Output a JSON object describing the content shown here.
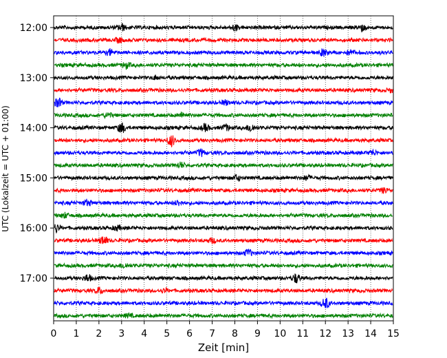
{
  "chart_data": {
    "type": "line",
    "xlabel": "Zeit  [min]",
    "ylabel": "UTC (Lokalzeit = UTC + 01:00)",
    "xlim": [
      0,
      15
    ],
    "x_ticks": [
      "0",
      "1",
      "2",
      "3",
      "4",
      "5",
      "6",
      "7",
      "8",
      "9",
      "10",
      "11",
      "12",
      "13",
      "14",
      "15"
    ],
    "y_ticks": [
      "12:00",
      "13:00",
      "14:00",
      "15:00",
      "16:00",
      "17:00"
    ],
    "grid": "vertical dotted",
    "trace_interval_minutes": 15,
    "trace_colors": [
      "#000000",
      "#ff0000",
      "#0000ff",
      "#008000"
    ],
    "series": [
      {
        "start": "12:00",
        "color": "#000000",
        "events": [
          {
            "t": 3.0,
            "a": 0.6
          },
          {
            "t": 8.0,
            "a": 0.5
          },
          {
            "t": 13.6,
            "a": 0.6
          }
        ]
      },
      {
        "start": "12:15",
        "color": "#ff0000",
        "events": [
          {
            "t": 2.9,
            "a": 0.4
          }
        ]
      },
      {
        "start": "12:30",
        "color": "#0000ff",
        "events": [
          {
            "t": 2.5,
            "a": 0.5
          },
          {
            "t": 11.9,
            "a": 0.6
          },
          {
            "t": 13.1,
            "a": 0.4
          }
        ]
      },
      {
        "start": "12:45",
        "color": "#008000",
        "events": [
          {
            "t": 3.2,
            "a": 0.5
          }
        ]
      },
      {
        "start": "13:00",
        "color": "#000000",
        "events": [
          {
            "t": 4.5,
            "a": 0.3
          }
        ]
      },
      {
        "start": "13:15",
        "color": "#ff0000",
        "events": [
          {
            "t": 14.9,
            "a": 0.3
          }
        ]
      },
      {
        "start": "13:30",
        "color": "#0000ff",
        "events": [
          {
            "t": 0.2,
            "a": 0.8
          },
          {
            "t": 7.6,
            "a": 0.4
          }
        ]
      },
      {
        "start": "13:45",
        "color": "#008000",
        "events": [
          {
            "t": 2.4,
            "a": 0.4
          },
          {
            "t": 5.7,
            "a": 0.4
          }
        ]
      },
      {
        "start": "14:00",
        "color": "#000000",
        "events": [
          {
            "t": 3.0,
            "a": 0.9
          },
          {
            "t": 6.7,
            "a": 0.6
          },
          {
            "t": 7.6,
            "a": 0.5
          },
          {
            "t": 8.7,
            "a": 0.7
          }
        ]
      },
      {
        "start": "14:15",
        "color": "#ff0000",
        "events": [
          {
            "t": 5.2,
            "a": 1.0
          }
        ]
      },
      {
        "start": "14:30",
        "color": "#0000ff",
        "events": [
          {
            "t": 6.5,
            "a": 0.6
          },
          {
            "t": 14.1,
            "a": 0.4
          }
        ]
      },
      {
        "start": "14:45",
        "color": "#008000",
        "events": [
          {
            "t": 5.6,
            "a": 0.5
          }
        ]
      },
      {
        "start": "15:00",
        "color": "#000000",
        "events": [
          {
            "t": 8.1,
            "a": 0.5
          },
          {
            "t": 11.2,
            "a": 0.4
          }
        ]
      },
      {
        "start": "15:15",
        "color": "#ff0000",
        "events": [
          {
            "t": 14.6,
            "a": 0.4
          }
        ]
      },
      {
        "start": "15:30",
        "color": "#0000ff",
        "events": [
          {
            "t": 1.5,
            "a": 0.5
          },
          {
            "t": 5.5,
            "a": 0.4
          }
        ]
      },
      {
        "start": "15:45",
        "color": "#008000",
        "events": [
          {
            "t": 0.5,
            "a": 0.4
          }
        ]
      },
      {
        "start": "16:00",
        "color": "#000000",
        "events": [
          {
            "t": 0.1,
            "a": 0.7
          },
          {
            "t": 2.8,
            "a": 0.4
          }
        ]
      },
      {
        "start": "16:15",
        "color": "#ff0000",
        "events": [
          {
            "t": 2.2,
            "a": 0.8
          },
          {
            "t": 7.0,
            "a": 0.4
          }
        ]
      },
      {
        "start": "16:30",
        "color": "#0000ff",
        "events": [
          {
            "t": 8.6,
            "a": 0.6
          }
        ]
      },
      {
        "start": "16:45",
        "color": "#008000",
        "events": [
          {
            "t": 3.1,
            "a": 0.4
          }
        ]
      },
      {
        "start": "17:00",
        "color": "#000000",
        "events": [
          {
            "t": 1.5,
            "a": 0.6
          },
          {
            "t": 10.7,
            "a": 0.8
          }
        ]
      },
      {
        "start": "17:15",
        "color": "#ff0000",
        "events": [
          {
            "t": 2.0,
            "a": 0.5
          },
          {
            "t": 4.9,
            "a": 0.3
          }
        ]
      },
      {
        "start": "17:30",
        "color": "#0000ff",
        "events": [
          {
            "t": 12.0,
            "a": 1.0
          }
        ]
      },
      {
        "start": "17:45",
        "color": "#008000",
        "events": [
          {
            "t": 3.3,
            "a": 0.3
          }
        ]
      }
    ]
  }
}
